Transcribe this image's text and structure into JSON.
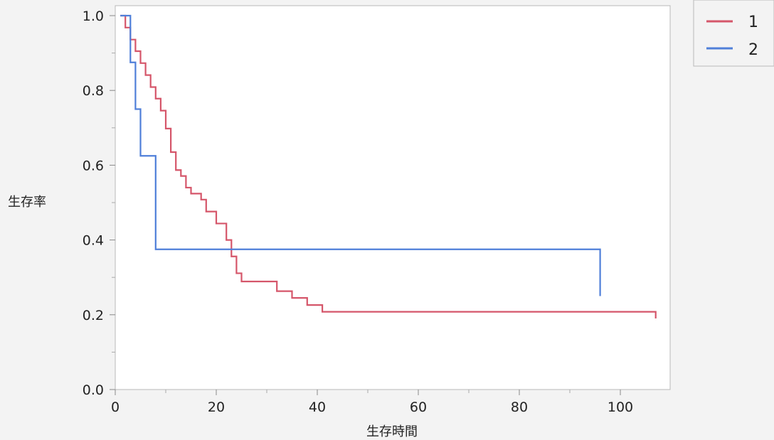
{
  "chart_data": {
    "type": "line",
    "step": true,
    "title": "",
    "xlabel": "生存時間",
    "ylabel": "生存率",
    "xlim": [
      0,
      110
    ],
    "ylim": [
      0,
      1
    ],
    "x_ticks": [
      0,
      20,
      40,
      60,
      80,
      100
    ],
    "x_minor_ticks": [
      10,
      30,
      50,
      70,
      90,
      110
    ],
    "y_ticks": [
      0.0,
      0.2,
      0.4,
      0.6,
      0.8,
      1.0
    ],
    "y_tick_labels": [
      "0.0",
      "0.2",
      "0.4",
      "0.6",
      "0.8",
      "1.0"
    ],
    "y_minor_ticks": [
      0.1,
      0.3,
      0.5,
      0.7,
      0.9
    ],
    "grid": false,
    "legend_position": "top-right, outside plot",
    "series": [
      {
        "name": "1",
        "color": "#d5566a",
        "x": [
          1,
          2,
          3,
          4,
          5,
          6,
          7,
          8,
          9,
          10,
          11,
          12,
          13,
          14,
          15,
          17,
          18,
          20,
          22,
          23,
          24,
          25,
          32,
          35,
          38,
          41,
          107
        ],
        "y": [
          1.0,
          0.968,
          0.936,
          0.905,
          0.873,
          0.841,
          0.809,
          0.778,
          0.746,
          0.698,
          0.635,
          0.587,
          0.571,
          0.54,
          0.524,
          0.508,
          0.476,
          0.444,
          0.4,
          0.356,
          0.311,
          0.289,
          0.263,
          0.245,
          0.226,
          0.208,
          0.19
        ]
      },
      {
        "name": "2",
        "color": "#4f7fd9",
        "x": [
          1,
          3,
          4,
          5,
          8,
          96
        ],
        "y": [
          1.0,
          0.875,
          0.75,
          0.625,
          0.375,
          0.25
        ]
      }
    ]
  }
}
